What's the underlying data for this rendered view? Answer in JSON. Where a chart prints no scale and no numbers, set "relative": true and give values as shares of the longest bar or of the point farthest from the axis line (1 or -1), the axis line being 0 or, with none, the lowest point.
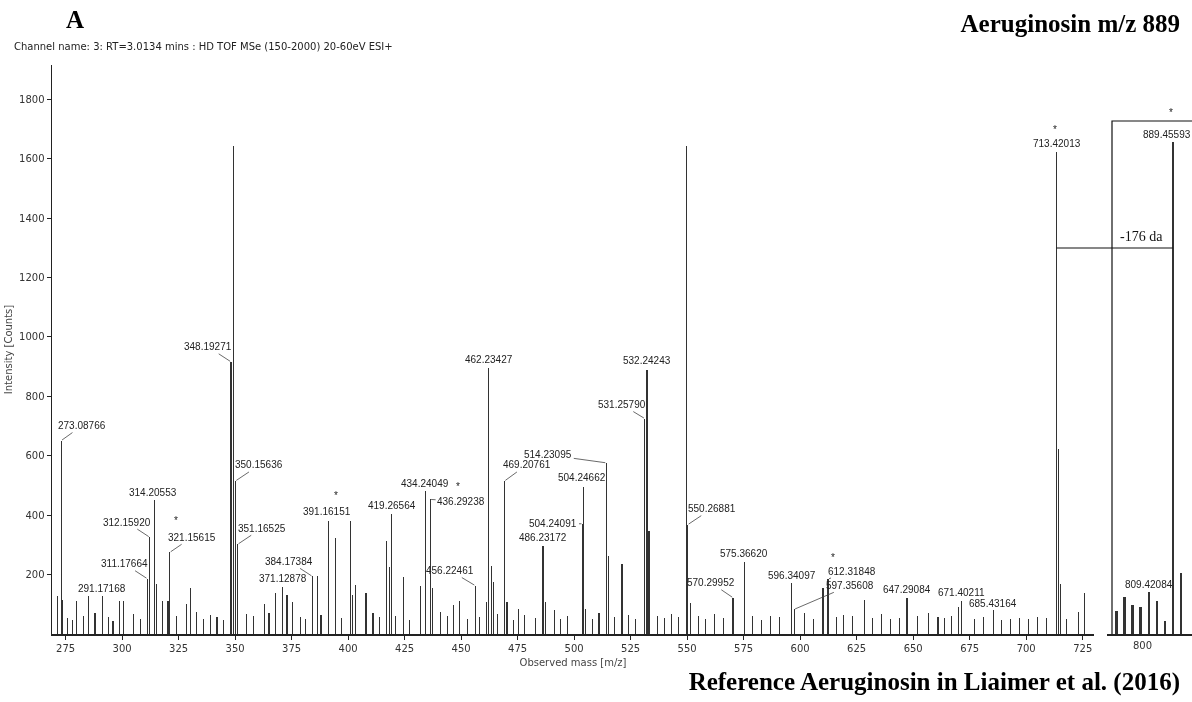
{
  "chart_data": [
    {
      "type": "bar",
      "title": "Aeruginosin m/z 889",
      "subtitle": "Channel name: 3: RT=3.0134 mins : HD TOF MSe (150-2000) 20-60eV ESI+",
      "xlabel": "Observed mass [m/z]",
      "ylabel": "Intensity [Counts]",
      "color": "#333333",
      "xlim": [
        269,
        730
      ],
      "ylim": [
        0,
        1915
      ],
      "xticks": [
        275,
        300,
        325,
        350,
        375,
        400,
        425,
        450,
        475,
        500,
        525,
        550,
        575,
        600,
        625,
        650,
        675,
        700,
        725
      ],
      "yticks": [
        200,
        400,
        600,
        800,
        1000,
        1200,
        1400,
        1600,
        1800
      ],
      "x": [
        271.6,
        273.09,
        273.8,
        276,
        278,
        279.7,
        283,
        285.2,
        288,
        291.17,
        294,
        296,
        298.7,
        300.8,
        305,
        308,
        311.18,
        312.16,
        314.21,
        315.1,
        317.9,
        320.3,
        321.16,
        324,
        328.5,
        330.2,
        333,
        336,
        339,
        342,
        345,
        348.19,
        349.2,
        350.16,
        351.17,
        355,
        358,
        363.0,
        365,
        367.9,
        371.13,
        373.0,
        375.5,
        379,
        381,
        384.17,
        386.3,
        388,
        391.16,
        394.3,
        397,
        401.1,
        402.0,
        403.2,
        407.9,
        411,
        414,
        417.1,
        418.2,
        419.27,
        421,
        424.5,
        427,
        432.2,
        434.24,
        436.29,
        437.3,
        441,
        444,
        446.6,
        449.4,
        453,
        456.22,
        458,
        461.3,
        462.23,
        463.3,
        464.2,
        466,
        469.21,
        470.3,
        473,
        475.3,
        478,
        483,
        486.23,
        487.2,
        491.3,
        494,
        497,
        503.7,
        504.25,
        505.0,
        508,
        511,
        514.23,
        515.1,
        518,
        521.2,
        524,
        527,
        531.26,
        532.24,
        533.1,
        537,
        540,
        543,
        546,
        549.6,
        550.27,
        551.3,
        555,
        558,
        562,
        566,
        570.3,
        575.37,
        579,
        583,
        587,
        591,
        596.34,
        597.36,
        602,
        606,
        610.1,
        612.32,
        616,
        619,
        623,
        628.3,
        632,
        636,
        640,
        644,
        647.29,
        652,
        656.8,
        661,
        664,
        667,
        670.1,
        671.4,
        677,
        681,
        685.4,
        689,
        693,
        697,
        701,
        705,
        709,
        713.42,
        714.4,
        715.3,
        718,
        723.1,
        725.9
      ],
      "values": [
        128,
        651,
        115,
        55,
        48,
        111,
        62,
        127,
        70,
        127,
        58,
        45,
        111,
        111,
        66,
        52,
        186,
        326,
        451,
        169,
        111,
        112,
        275,
        60,
        100,
        156,
        74,
        50,
        64,
        56,
        47,
        916,
        1643,
        515,
        302,
        68,
        60,
        101,
        72,
        138,
        159,
        132,
        108,
        57,
        50,
        194,
        194,
        65,
        382,
        324,
        54,
        382,
        132,
        164,
        137,
        70,
        58,
        314,
        225,
        403,
        62,
        192,
        46,
        163,
        481,
        453,
        156,
        75,
        60,
        98,
        112,
        52,
        163,
        58,
        109,
        894,
        229,
        176,
        66,
        515,
        108,
        48,
        83,
        63,
        55,
        296,
        108,
        80,
        52,
        61,
        371,
        496,
        85,
        50,
        70,
        576,
        261,
        57,
        236,
        64,
        49,
        725,
        889,
        345,
        62,
        55,
        68,
        58,
        1643,
        368,
        104,
        60,
        52,
        66,
        54,
        122,
        242,
        60,
        48,
        62,
        56,
        170,
        83,
        70,
        51,
        155,
        185,
        58,
        64,
        60,
        116,
        54,
        68,
        49,
        55,
        122,
        62,
        70,
        58,
        53,
        60,
        90,
        112,
        50,
        56,
        80,
        48,
        52,
        55,
        50,
        57,
        53,
        1623,
        621,
        168,
        52,
        75,
        138
      ],
      "annotations": [
        "A",
        "Reference Aeruginosin in Liaimer et al. (2016)",
        {
          "text": "273.08766",
          "x": 273.09,
          "y": 651
        },
        {
          "text": "291.17168",
          "x": 291.17,
          "y": 127
        },
        {
          "text": "311.17664",
          "x": 311.18,
          "y": 186
        },
        {
          "text": "312.15920",
          "x": 312.16,
          "y": 326
        },
        {
          "text": "314.20553",
          "x": 314.21,
          "y": 451
        },
        {
          "text": "321.15615",
          "x": 321.16,
          "y": 275
        },
        {
          "text": "348.19271",
          "x": 348.19,
          "y": 916
        },
        {
          "text": "350.15636",
          "x": 350.16,
          "y": 515
        },
        {
          "text": "351.16525",
          "x": 351.17,
          "y": 302
        },
        {
          "text": "371.12878",
          "x": 371.13,
          "y": 159
        },
        {
          "text": "384.17384",
          "x": 384.17,
          "y": 194
        },
        {
          "text": "391.16151",
          "x": 391.16,
          "y": 382
        },
        {
          "text": "419.26564",
          "x": 419.27,
          "y": 403
        },
        {
          "text": "434.24049",
          "x": 434.24,
          "y": 481
        },
        {
          "text": "436.29238",
          "x": 436.29,
          "y": 453
        },
        {
          "text": "456.22461",
          "x": 456.22,
          "y": 163
        },
        {
          "text": "462.23427",
          "x": 462.23,
          "y": 894
        },
        {
          "text": "469.20761",
          "x": 469.21,
          "y": 515
        },
        {
          "text": "504.24662",
          "x": 504.25,
          "y": 496
        },
        {
          "text": "504.24091",
          "x": 503.7,
          "y": 371
        },
        {
          "text": "486.23172",
          "x": 486.23,
          "y": 296
        },
        {
          "text": "514.23095",
          "x": 514.23,
          "y": 576
        },
        {
          "text": "531.25790",
          "x": 531.26,
          "y": 725
        },
        {
          "text": "532.24243",
          "x": 532.24,
          "y": 889
        },
        {
          "text": "550.26881",
          "x": 550.27,
          "y": 368
        },
        {
          "text": "570.29952",
          "x": 570.3,
          "y": 122
        },
        {
          "text": "575.36620",
          "x": 575.37,
          "y": 242
        },
        {
          "text": "596.34097",
          "x": 596.34,
          "y": 170
        },
        {
          "text": "612.31848",
          "x": 612.32,
          "y": 185
        },
        {
          "text": "597.35608",
          "x": 597.36,
          "y": 83
        },
        {
          "text": "647.29084",
          "x": 647.29,
          "y": 122
        },
        {
          "text": "671.40211",
          "x": 671.4,
          "y": 112
        },
        {
          "text": "685.43164",
          "x": 685.4,
          "y": 80
        },
        {
          "text": "713.42013",
          "x": 713.42,
          "y": 1623
        },
        {
          "text": "*",
          "x": 321.16,
          "y": 275
        },
        {
          "text": "*",
          "x": 391.16,
          "y": 382
        },
        {
          "text": "*",
          "x": 436.29,
          "y": 453
        },
        {
          "text": "*",
          "x": 612.32,
          "y": 185
        },
        {
          "text": "*",
          "x": 713.42,
          "y": 1623
        }
      ]
    },
    {
      "type": "bar",
      "color": "#333333",
      "relative": true,
      "categories": [
        null,
        null,
        null,
        null,
        null,
        null,
        null,
        null,
        null
      ],
      "values": [
        0.046,
        0.075,
        0.059,
        0.055,
        0.085,
        0.067,
        0.027,
        1,
        0.124
      ],
      "annotations": [
        "-176 da",
        "800",
        {
          "text": "809.42084",
          "y": 0.085
        },
        {
          "text": "889.45593",
          "y": 1
        },
        {
          "text": "*",
          "y": 1
        }
      ]
    }
  ]
}
